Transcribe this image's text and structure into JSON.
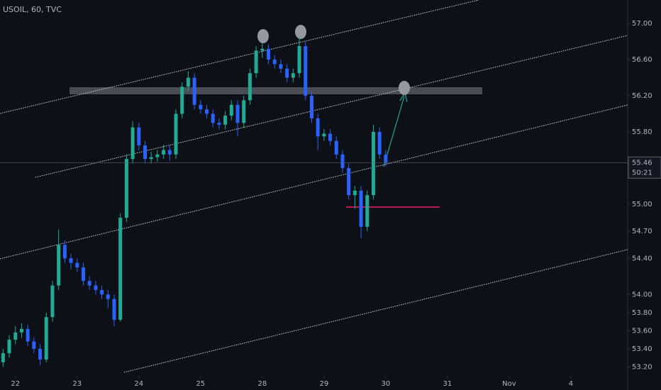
{
  "chart_data": {
    "type": "candlestick",
    "title": "USOIL, 60, TVC",
    "x": [
      -0.2,
      -0.1,
      0,
      0.1,
      0.2,
      0.3,
      0.4,
      0.5,
      0.6,
      0.7,
      0.8,
      0.9,
      1.0,
      1.1,
      1.2,
      1.3,
      1.4,
      1.5,
      1.6,
      1.7,
      1.8,
      1.9,
      2.0,
      2.1,
      2.2,
      2.3,
      2.4,
      2.5,
      2.6,
      2.7,
      2.8,
      2.9,
      3.0,
      3.1,
      3.2,
      3.3,
      3.4,
      3.5,
      3.6,
      3.7,
      3.8,
      3.9,
      4.0,
      4.1,
      4.2,
      4.3,
      4.4,
      4.5,
      4.6,
      4.7,
      4.8,
      4.9,
      5.0,
      5.1,
      5.2,
      5.3,
      5.4,
      5.5,
      5.6,
      5.7,
      5.8,
      5.9,
      6.0
    ],
    "open": [
      53.25,
      53.35,
      53.5,
      53.58,
      53.62,
      53.48,
      53.4,
      53.28,
      53.75,
      54.1,
      54.55,
      54.4,
      54.35,
      54.3,
      54.15,
      54.1,
      54.05,
      54.0,
      53.95,
      53.72,
      54.85,
      55.5,
      55.85,
      55.65,
      55.5,
      55.52,
      55.55,
      55.6,
      55.55,
      56.0,
      56.3,
      56.4,
      56.1,
      56.05,
      56.0,
      55.9,
      55.88,
      55.98,
      56.1,
      55.9,
      56.15,
      56.45,
      56.7,
      56.72,
      56.6,
      56.55,
      56.5,
      56.4,
      56.45,
      56.75,
      56.2,
      55.95,
      55.75,
      55.78,
      55.7,
      55.55,
      55.4,
      55.1,
      55.15,
      54.75,
      55.1,
      55.8,
      55.55
    ],
    "high": [
      53.4,
      53.55,
      53.65,
      53.68,
      53.67,
      53.53,
      53.45,
      53.8,
      54.15,
      54.72,
      54.6,
      54.45,
      54.4,
      54.35,
      54.2,
      54.15,
      54.1,
      54.05,
      54.0,
      54.9,
      55.55,
      55.92,
      55.9,
      55.7,
      55.58,
      55.6,
      55.66,
      55.65,
      56.05,
      56.35,
      56.47,
      56.45,
      56.15,
      56.1,
      56.05,
      55.95,
      56.03,
      56.15,
      56.15,
      56.2,
      56.5,
      56.75,
      56.78,
      56.77,
      56.65,
      56.6,
      56.55,
      56.5,
      56.85,
      56.8,
      56.25,
      56.0,
      55.83,
      55.83,
      55.75,
      55.6,
      55.45,
      55.2,
      55.2,
      55.15,
      55.88,
      55.85,
      55.6
    ],
    "low": [
      53.2,
      53.3,
      53.45,
      53.52,
      53.43,
      53.35,
      53.22,
      53.25,
      53.7,
      54.05,
      54.35,
      54.28,
      54.25,
      54.1,
      54.05,
      54.0,
      53.95,
      53.85,
      53.65,
      53.7,
      54.8,
      55.45,
      55.6,
      55.45,
      55.45,
      55.47,
      55.5,
      55.48,
      55.5,
      55.95,
      56.25,
      56.05,
      56.0,
      55.95,
      55.85,
      55.83,
      55.83,
      55.93,
      55.75,
      55.85,
      56.1,
      56.4,
      56.62,
      56.55,
      56.5,
      56.45,
      56.35,
      56.35,
      56.4,
      56.15,
      55.9,
      55.6,
      55.7,
      55.65,
      55.5,
      55.35,
      55.05,
      54.95,
      54.62,
      54.7,
      55.05,
      55.5,
      55.42
    ],
    "close": [
      53.35,
      53.5,
      53.58,
      53.62,
      53.48,
      53.4,
      53.28,
      53.75,
      54.1,
      54.55,
      54.4,
      54.35,
      54.3,
      54.15,
      54.1,
      54.05,
      54.0,
      53.95,
      53.72,
      54.85,
      55.5,
      55.85,
      55.65,
      55.5,
      55.52,
      55.55,
      55.6,
      55.55,
      56.0,
      56.3,
      56.4,
      56.1,
      56.05,
      56.0,
      55.9,
      55.88,
      55.98,
      56.1,
      55.9,
      56.15,
      56.45,
      56.7,
      56.72,
      56.6,
      56.55,
      56.5,
      56.4,
      56.45,
      56.75,
      56.2,
      55.95,
      55.75,
      55.78,
      55.7,
      55.55,
      55.4,
      55.1,
      55.15,
      54.75,
      55.1,
      55.8,
      55.55,
      55.46
    ],
    "up_color": "#22ab94",
    "down_color": "#2962ff",
    "xlim": [
      -0.25,
      9.92
    ],
    "xticks": [
      {
        "value": 0,
        "label": "22"
      },
      {
        "value": 1,
        "label": "23"
      },
      {
        "value": 2,
        "label": "24"
      },
      {
        "value": 3,
        "label": "25"
      },
      {
        "value": 4,
        "label": "28"
      },
      {
        "value": 5,
        "label": "29"
      },
      {
        "value": 6,
        "label": "30"
      },
      {
        "value": 7,
        "label": "31"
      },
      {
        "value": 8,
        "label": "Nov"
      },
      {
        "value": 9,
        "label": "4"
      }
    ],
    "ylim": [
      53.1,
      57.26
    ],
    "yticks": [
      {
        "value": 57,
        "label": "57.00"
      },
      {
        "value": 56.6,
        "label": "56.60"
      },
      {
        "value": 56.2,
        "label": "56.20"
      },
      {
        "value": 55.8,
        "label": "55.80"
      },
      {
        "value": 55,
        "label": "55.00"
      },
      {
        "value": 54.7,
        "label": "54.70"
      },
      {
        "value": 54.4,
        "label": "54.40"
      },
      {
        "value": 54,
        "label": "54.00"
      },
      {
        "value": 53.8,
        "label": "53.80"
      },
      {
        "value": 53.6,
        "label": "53.60"
      },
      {
        "value": 53.4,
        "label": "53.40"
      },
      {
        "value": 53.2,
        "label": "53.20"
      }
    ],
    "last_price": {
      "value": 55.46,
      "label": "55.46"
    },
    "countdown": "50:21"
  }
}
